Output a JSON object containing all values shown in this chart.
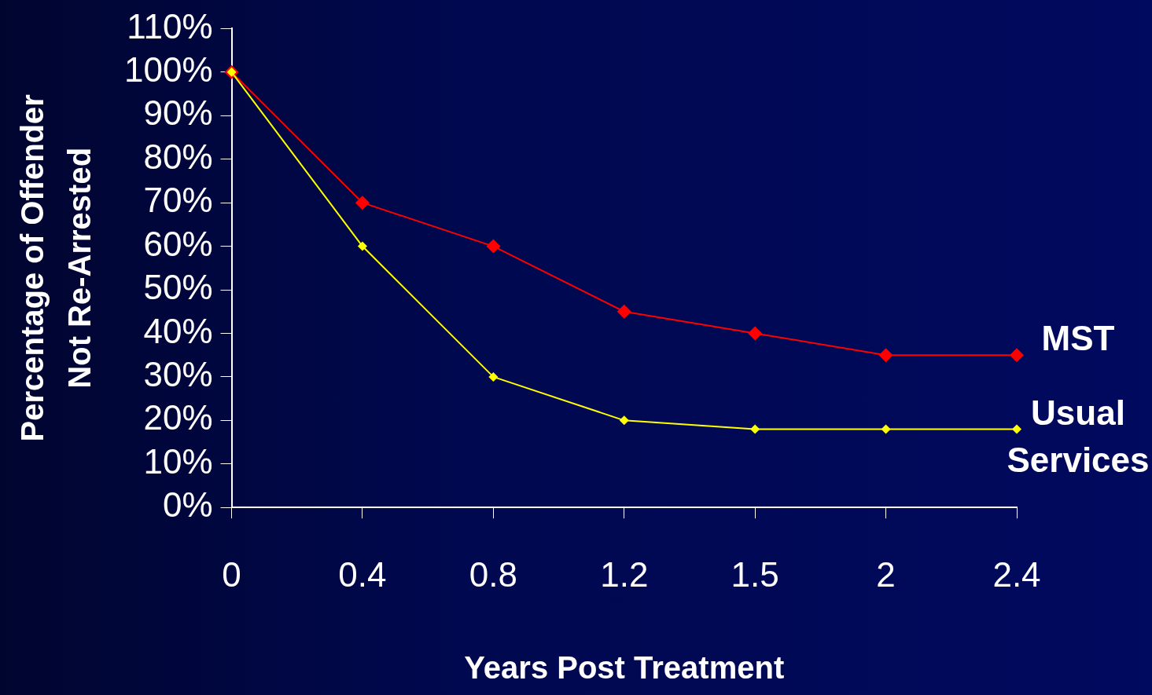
{
  "chart_data": {
    "type": "line",
    "xlabel": "Years Post Treatment",
    "ylabel": "Percentage of Offender Not Re-Arrested",
    "categories": [
      "0",
      "0.4",
      "0.8",
      "1.2",
      "1.5",
      "2",
      "2.4"
    ],
    "series": [
      {
        "name": "MST",
        "color": "#ff0000",
        "values": [
          100,
          70,
          60,
          45,
          40,
          35,
          35
        ]
      },
      {
        "name": "Usual Services",
        "color": "#ffff00",
        "values": [
          100,
          60,
          30,
          20,
          18,
          18,
          18
        ]
      }
    ],
    "ylim": [
      0,
      110
    ],
    "yticks": [
      {
        "value": 0,
        "label": "0%"
      },
      {
        "value": 10,
        "label": "10%"
      },
      {
        "value": 20,
        "label": "20%"
      },
      {
        "value": 30,
        "label": "30%"
      },
      {
        "value": 40,
        "label": "40%"
      },
      {
        "value": 50,
        "label": "50%"
      },
      {
        "value": 60,
        "label": "60%"
      },
      {
        "value": 70,
        "label": "70%"
      },
      {
        "value": 80,
        "label": "80%"
      },
      {
        "value": 90,
        "label": "90%"
      },
      {
        "value": 100,
        "label": "100%"
      },
      {
        "value": 110,
        "label": "110%"
      }
    ],
    "grid": false,
    "legend": false,
    "marker": "diamond",
    "line_style": "solid"
  }
}
